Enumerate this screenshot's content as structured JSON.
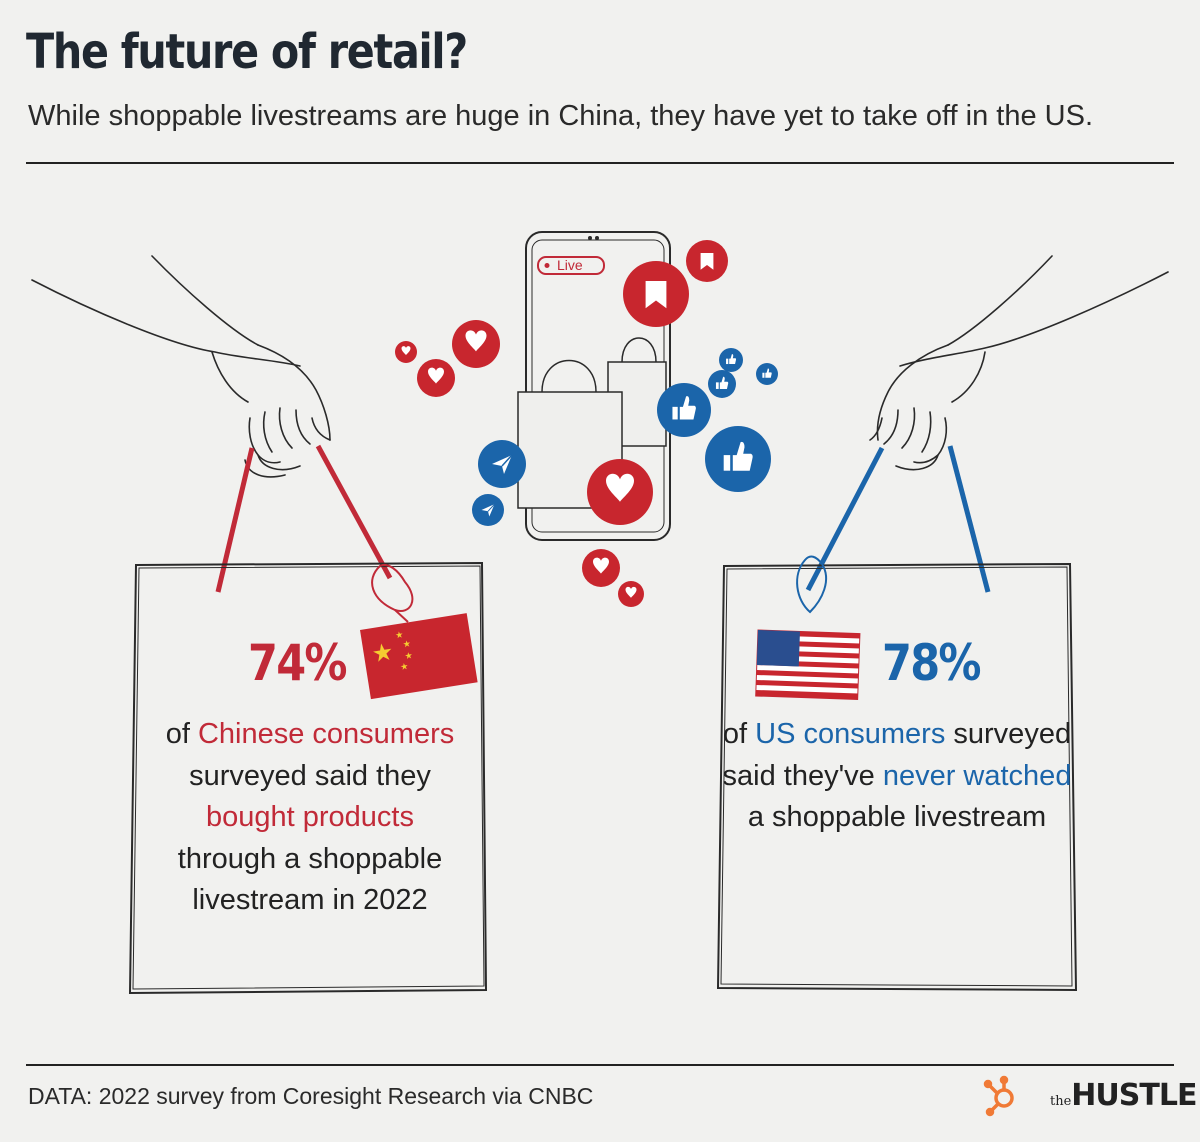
{
  "header": {
    "title": "The future of retail?",
    "subtitle": "While shoppable livestreams are huge in China, they have yet to take off in the US."
  },
  "phone": {
    "live_badge": "Live"
  },
  "china": {
    "percent": "74%",
    "value": 74,
    "text_1": "of ",
    "highlight_1": "Chinese consumers",
    "text_2": "surveyed said they",
    "highlight_2": "bought products",
    "text_3": "through a shoppable livestream in 2022"
  },
  "us": {
    "percent": "78%",
    "value": 78,
    "text_1": "of ",
    "highlight_1": "US consumers",
    "text_2": " surveyed said they've ",
    "highlight_2": "never watched",
    "text_3": " a shoppable livestream"
  },
  "footer": {
    "source": "DATA: 2022 survey from Coresight Research via CNBC",
    "logo_small": "the",
    "logo_large": "HUSTLE"
  },
  "colors": {
    "red": "#c12a38",
    "blue": "#1b65aa",
    "background": "#f1f1ef",
    "text": "#222222",
    "orange": "#f07a36"
  },
  "icons": [
    "heart-icon",
    "bookmark-icon",
    "thumbs-up-icon",
    "send-icon",
    "shopping-bag-icon",
    "hand-icon",
    "china-flag-icon",
    "us-flag-icon",
    "hubspot-sprocket-icon"
  ]
}
